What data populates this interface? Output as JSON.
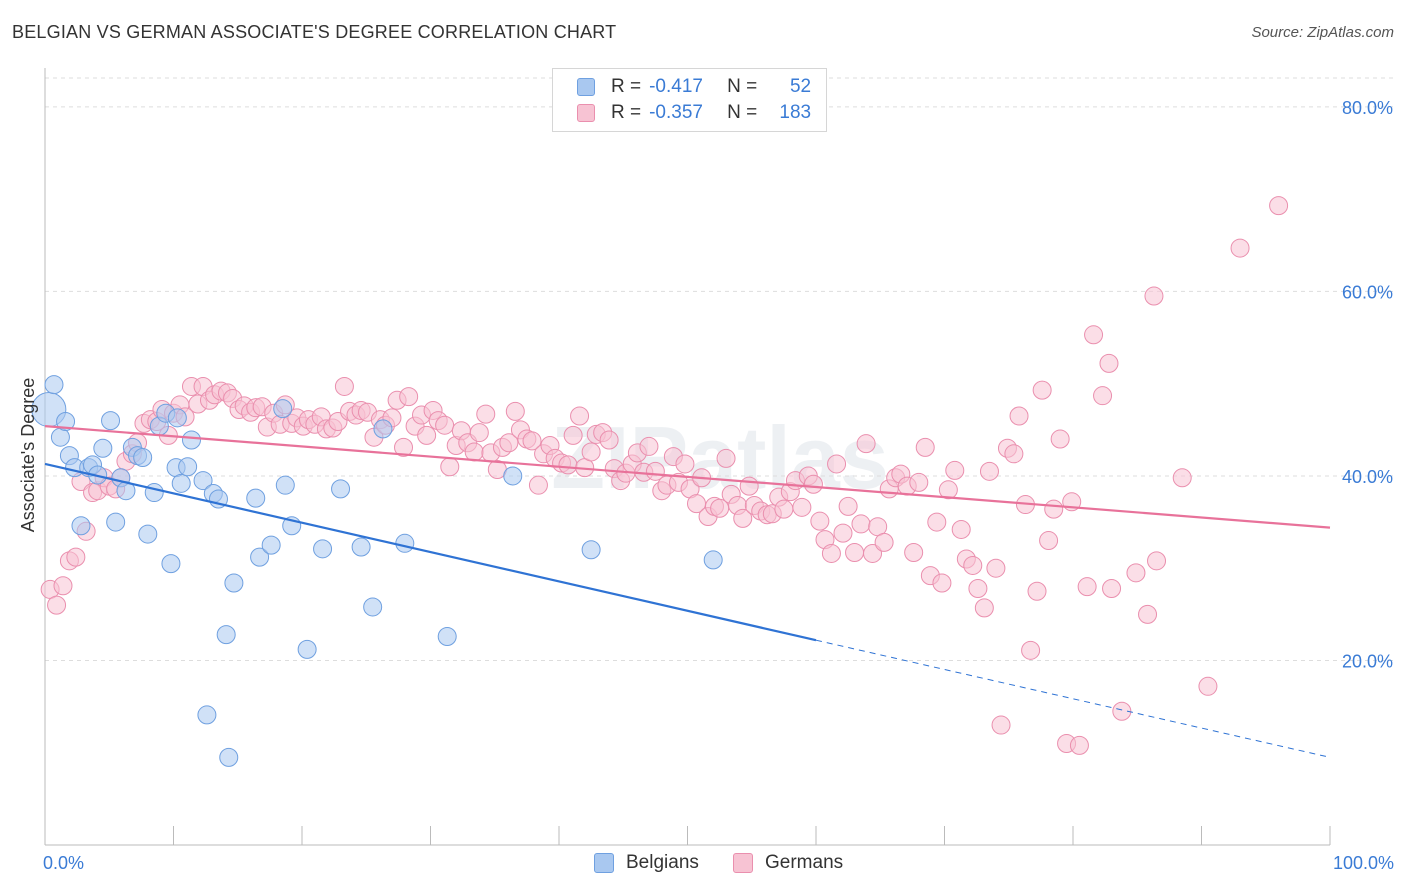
{
  "title": "BELGIAN VS GERMAN ASSOCIATE'S DEGREE CORRELATION CHART",
  "source": "Source: ZipAtlas.com",
  "watermark": "ZIPatlas",
  "legend": {
    "rows": [
      {
        "r_label": "R =",
        "r_value": "-0.417",
        "n_label": "N =",
        "n_value": "52",
        "color": "#a9c8f0",
        "border": "#6fa0e0"
      },
      {
        "r_label": "R =",
        "r_value": "-0.357",
        "n_label": "N =",
        "n_value": "183",
        "color": "#f7c3d3",
        "border": "#ea8fae"
      }
    ]
  },
  "bottom_legend": [
    {
      "label": "Belgians",
      "color": "#a9c8f0",
      "border": "#6fa0e0"
    },
    {
      "label": "Germans",
      "color": "#f7c3d3",
      "border": "#ea8fae"
    }
  ],
  "colors": {
    "belgian_line": "#2f73d4",
    "german_line": "#e8729a",
    "belgian_fill": "#a9c8f0",
    "german_fill": "#f7c3d3",
    "belgian_stroke": "#6fa0e0",
    "german_stroke": "#ea8fae",
    "axis_text": "#3a7bd5"
  },
  "chart_data": {
    "type": "scatter",
    "title": "BELGIAN VS GERMAN ASSOCIATE'S DEGREE CORRELATION CHART",
    "xlabel": "",
    "ylabel": "Associate's Degree",
    "xlim": [
      0,
      100
    ],
    "ylim": [
      0,
      84
    ],
    "x_tick_labels": [
      "0.0%",
      "100.0%"
    ],
    "y_ticks": [
      20,
      40,
      60,
      80
    ],
    "y_tick_labels": [
      "20.0%",
      "40.0%",
      "60.0%",
      "80.0%"
    ],
    "series": [
      {
        "name": "Belgians",
        "R": -0.417,
        "N": 52,
        "trend": {
          "x_start": 0,
          "y_start": 41.3,
          "x_end": 60,
          "y_end": 22.2,
          "dashed_to_x": 100,
          "dashed_to_y": 9.5
        },
        "points": [
          [
            0.3,
            47.2
          ],
          [
            0.7,
            49.9
          ],
          [
            1.2,
            44.2
          ],
          [
            1.6,
            45.9
          ],
          [
            1.9,
            42.2
          ],
          [
            2.3,
            40.9
          ],
          [
            2.8,
            34.6
          ],
          [
            3.4,
            40.9
          ],
          [
            3.7,
            41.2
          ],
          [
            4.1,
            40.1
          ],
          [
            4.5,
            43.0
          ],
          [
            5.1,
            46.0
          ],
          [
            5.5,
            35.0
          ],
          [
            5.9,
            39.8
          ],
          [
            6.3,
            38.4
          ],
          [
            6.8,
            43.1
          ],
          [
            7.2,
            42.2
          ],
          [
            7.6,
            42.0
          ],
          [
            8.0,
            33.7
          ],
          [
            8.5,
            38.2
          ],
          [
            8.9,
            45.4
          ],
          [
            9.4,
            46.8
          ],
          [
            9.8,
            30.5
          ],
          [
            10.2,
            40.9
          ],
          [
            10.6,
            39.2
          ],
          [
            11.1,
            41.0
          ],
          [
            11.4,
            43.9
          ],
          [
            12.3,
            39.5
          ],
          [
            12.6,
            14.1
          ],
          [
            13.1,
            38.1
          ],
          [
            13.5,
            37.5
          ],
          [
            14.1,
            22.8
          ],
          [
            14.3,
            9.5
          ],
          [
            14.7,
            28.4
          ],
          [
            16.4,
            37.6
          ],
          [
            16.7,
            31.2
          ],
          [
            17.6,
            32.5
          ],
          [
            18.7,
            39.0
          ],
          [
            19.2,
            34.6
          ],
          [
            20.4,
            21.2
          ],
          [
            21.6,
            32.1
          ],
          [
            23.0,
            38.6
          ],
          [
            24.6,
            32.3
          ],
          [
            25.5,
            25.8
          ],
          [
            26.3,
            45.1
          ],
          [
            28.0,
            32.7
          ],
          [
            31.3,
            22.6
          ],
          [
            36.4,
            40.0
          ],
          [
            42.5,
            32.0
          ],
          [
            52.0,
            30.9
          ],
          [
            18.5,
            47.3
          ],
          [
            10.3,
            46.3
          ]
        ]
      },
      {
        "name": "Germans",
        "R": -0.357,
        "N": 183,
        "trend": {
          "x_start": 0,
          "y_start": 45.4,
          "x_end": 100,
          "y_end": 34.4
        },
        "points": [
          [
            0.4,
            27.7
          ],
          [
            0.9,
            26.0
          ],
          [
            1.4,
            28.1
          ],
          [
            1.9,
            30.8
          ],
          [
            2.4,
            31.2
          ],
          [
            2.8,
            39.4
          ],
          [
            3.2,
            34.0
          ],
          [
            3.7,
            38.2
          ],
          [
            4.1,
            38.4
          ],
          [
            4.6,
            39.8
          ],
          [
            5.0,
            38.9
          ],
          [
            5.5,
            38.6
          ],
          [
            5.9,
            39.8
          ],
          [
            6.3,
            41.6
          ],
          [
            6.8,
            42.4
          ],
          [
            7.2,
            43.6
          ],
          [
            7.7,
            45.7
          ],
          [
            8.2,
            46.1
          ],
          [
            8.7,
            45.9
          ],
          [
            9.1,
            47.2
          ],
          [
            9.6,
            44.4
          ],
          [
            10.0,
            46.8
          ],
          [
            10.5,
            47.7
          ],
          [
            10.9,
            46.4
          ],
          [
            11.4,
            49.7
          ],
          [
            11.9,
            47.8
          ],
          [
            12.3,
            49.7
          ],
          [
            12.8,
            48.2
          ],
          [
            13.2,
            48.8
          ],
          [
            13.7,
            49.2
          ],
          [
            14.2,
            49.0
          ],
          [
            14.6,
            48.4
          ],
          [
            15.1,
            47.2
          ],
          [
            15.5,
            47.6
          ],
          [
            16.0,
            46.9
          ],
          [
            16.4,
            47.4
          ],
          [
            16.9,
            47.5
          ],
          [
            17.3,
            45.3
          ],
          [
            17.8,
            46.8
          ],
          [
            18.3,
            45.6
          ],
          [
            18.7,
            47.7
          ],
          [
            19.2,
            45.7
          ],
          [
            19.6,
            46.3
          ],
          [
            20.1,
            45.4
          ],
          [
            20.5,
            46.1
          ],
          [
            21.0,
            45.6
          ],
          [
            21.5,
            46.4
          ],
          [
            21.9,
            45.1
          ],
          [
            22.4,
            45.2
          ],
          [
            22.8,
            45.9
          ],
          [
            23.3,
            49.7
          ],
          [
            23.7,
            47.0
          ],
          [
            24.2,
            46.6
          ],
          [
            24.6,
            47.1
          ],
          [
            25.1,
            46.9
          ],
          [
            25.6,
            44.2
          ],
          [
            26.1,
            46.1
          ],
          [
            26.5,
            45.5
          ],
          [
            27.0,
            46.3
          ],
          [
            27.4,
            48.2
          ],
          [
            27.9,
            43.1
          ],
          [
            28.3,
            48.6
          ],
          [
            28.8,
            45.4
          ],
          [
            29.3,
            46.6
          ],
          [
            29.7,
            44.4
          ],
          [
            30.2,
            47.1
          ],
          [
            30.6,
            46.0
          ],
          [
            31.1,
            45.5
          ],
          [
            31.5,
            41.0
          ],
          [
            32.0,
            43.3
          ],
          [
            32.4,
            44.9
          ],
          [
            32.9,
            43.6
          ],
          [
            33.4,
            42.6
          ],
          [
            33.8,
            44.7
          ],
          [
            34.3,
            46.7
          ],
          [
            34.7,
            42.5
          ],
          [
            35.2,
            40.7
          ],
          [
            35.6,
            43.1
          ],
          [
            36.1,
            43.6
          ],
          [
            36.6,
            47.0
          ],
          [
            37.0,
            45.0
          ],
          [
            37.5,
            44.0
          ],
          [
            37.9,
            43.8
          ],
          [
            38.4,
            39.0
          ],
          [
            38.8,
            42.4
          ],
          [
            39.3,
            43.3
          ],
          [
            39.7,
            41.9
          ],
          [
            40.2,
            41.4
          ],
          [
            40.7,
            41.2
          ],
          [
            41.1,
            44.4
          ],
          [
            41.6,
            46.5
          ],
          [
            42.0,
            40.9
          ],
          [
            42.5,
            42.6
          ],
          [
            42.9,
            44.5
          ],
          [
            43.4,
            44.7
          ],
          [
            43.9,
            43.9
          ],
          [
            44.3,
            40.8
          ],
          [
            44.8,
            39.5
          ],
          [
            45.2,
            40.3
          ],
          [
            45.7,
            41.3
          ],
          [
            46.1,
            42.5
          ],
          [
            46.6,
            40.4
          ],
          [
            47.0,
            43.2
          ],
          [
            47.5,
            40.5
          ],
          [
            48.0,
            38.4
          ],
          [
            48.4,
            39.0
          ],
          [
            48.9,
            42.1
          ],
          [
            49.3,
            39.3
          ],
          [
            49.8,
            41.3
          ],
          [
            50.2,
            38.6
          ],
          [
            50.7,
            37.0
          ],
          [
            51.1,
            39.8
          ],
          [
            51.6,
            35.6
          ],
          [
            52.1,
            36.7
          ],
          [
            52.5,
            36.5
          ],
          [
            53.0,
            41.9
          ],
          [
            53.4,
            38.0
          ],
          [
            53.9,
            36.8
          ],
          [
            54.3,
            35.4
          ],
          [
            54.8,
            38.9
          ],
          [
            55.2,
            36.8
          ],
          [
            55.7,
            36.2
          ],
          [
            56.2,
            35.8
          ],
          [
            56.6,
            35.9
          ],
          [
            57.1,
            37.7
          ],
          [
            57.5,
            36.4
          ],
          [
            58.0,
            38.3
          ],
          [
            58.4,
            39.5
          ],
          [
            58.9,
            36.6
          ],
          [
            59.4,
            40.0
          ],
          [
            59.8,
            39.1
          ],
          [
            60.3,
            35.1
          ],
          [
            60.7,
            33.1
          ],
          [
            61.2,
            31.6
          ],
          [
            61.6,
            41.3
          ],
          [
            62.1,
            33.8
          ],
          [
            62.5,
            36.7
          ],
          [
            63.0,
            31.7
          ],
          [
            63.5,
            34.8
          ],
          [
            63.9,
            43.5
          ],
          [
            64.4,
            31.6
          ],
          [
            64.8,
            34.5
          ],
          [
            65.3,
            32.8
          ],
          [
            65.7,
            38.6
          ],
          [
            66.2,
            39.8
          ],
          [
            66.6,
            40.2
          ],
          [
            67.1,
            38.9
          ],
          [
            67.6,
            31.7
          ],
          [
            68.0,
            39.3
          ],
          [
            68.5,
            43.1
          ],
          [
            68.9,
            29.2
          ],
          [
            69.4,
            35.0
          ],
          [
            69.8,
            28.4
          ],
          [
            70.3,
            38.5
          ],
          [
            70.8,
            40.6
          ],
          [
            71.3,
            34.2
          ],
          [
            71.7,
            31.0
          ],
          [
            72.2,
            30.3
          ],
          [
            72.6,
            27.8
          ],
          [
            73.1,
            25.7
          ],
          [
            73.5,
            40.5
          ],
          [
            74.0,
            30.0
          ],
          [
            74.4,
            13.0
          ],
          [
            74.9,
            43.0
          ],
          [
            75.4,
            42.4
          ],
          [
            75.8,
            46.5
          ],
          [
            76.3,
            36.9
          ],
          [
            76.7,
            21.1
          ],
          [
            77.2,
            27.5
          ],
          [
            77.6,
            49.3
          ],
          [
            78.1,
            33.0
          ],
          [
            78.5,
            36.4
          ],
          [
            79.0,
            44.0
          ],
          [
            79.5,
            11.0
          ],
          [
            79.9,
            37.2
          ],
          [
            80.5,
            10.8
          ],
          [
            81.1,
            28.0
          ],
          [
            81.6,
            55.3
          ],
          [
            82.3,
            48.7
          ],
          [
            82.8,
            52.2
          ],
          [
            83.0,
            27.8
          ],
          [
            83.8,
            14.5
          ],
          [
            84.9,
            29.5
          ],
          [
            85.8,
            25.0
          ],
          [
            86.3,
            59.5
          ],
          [
            86.5,
            30.8
          ],
          [
            88.5,
            39.8
          ],
          [
            90.5,
            17.2
          ],
          [
            93.0,
            64.7
          ],
          [
            96.0,
            69.3
          ]
        ]
      }
    ]
  }
}
